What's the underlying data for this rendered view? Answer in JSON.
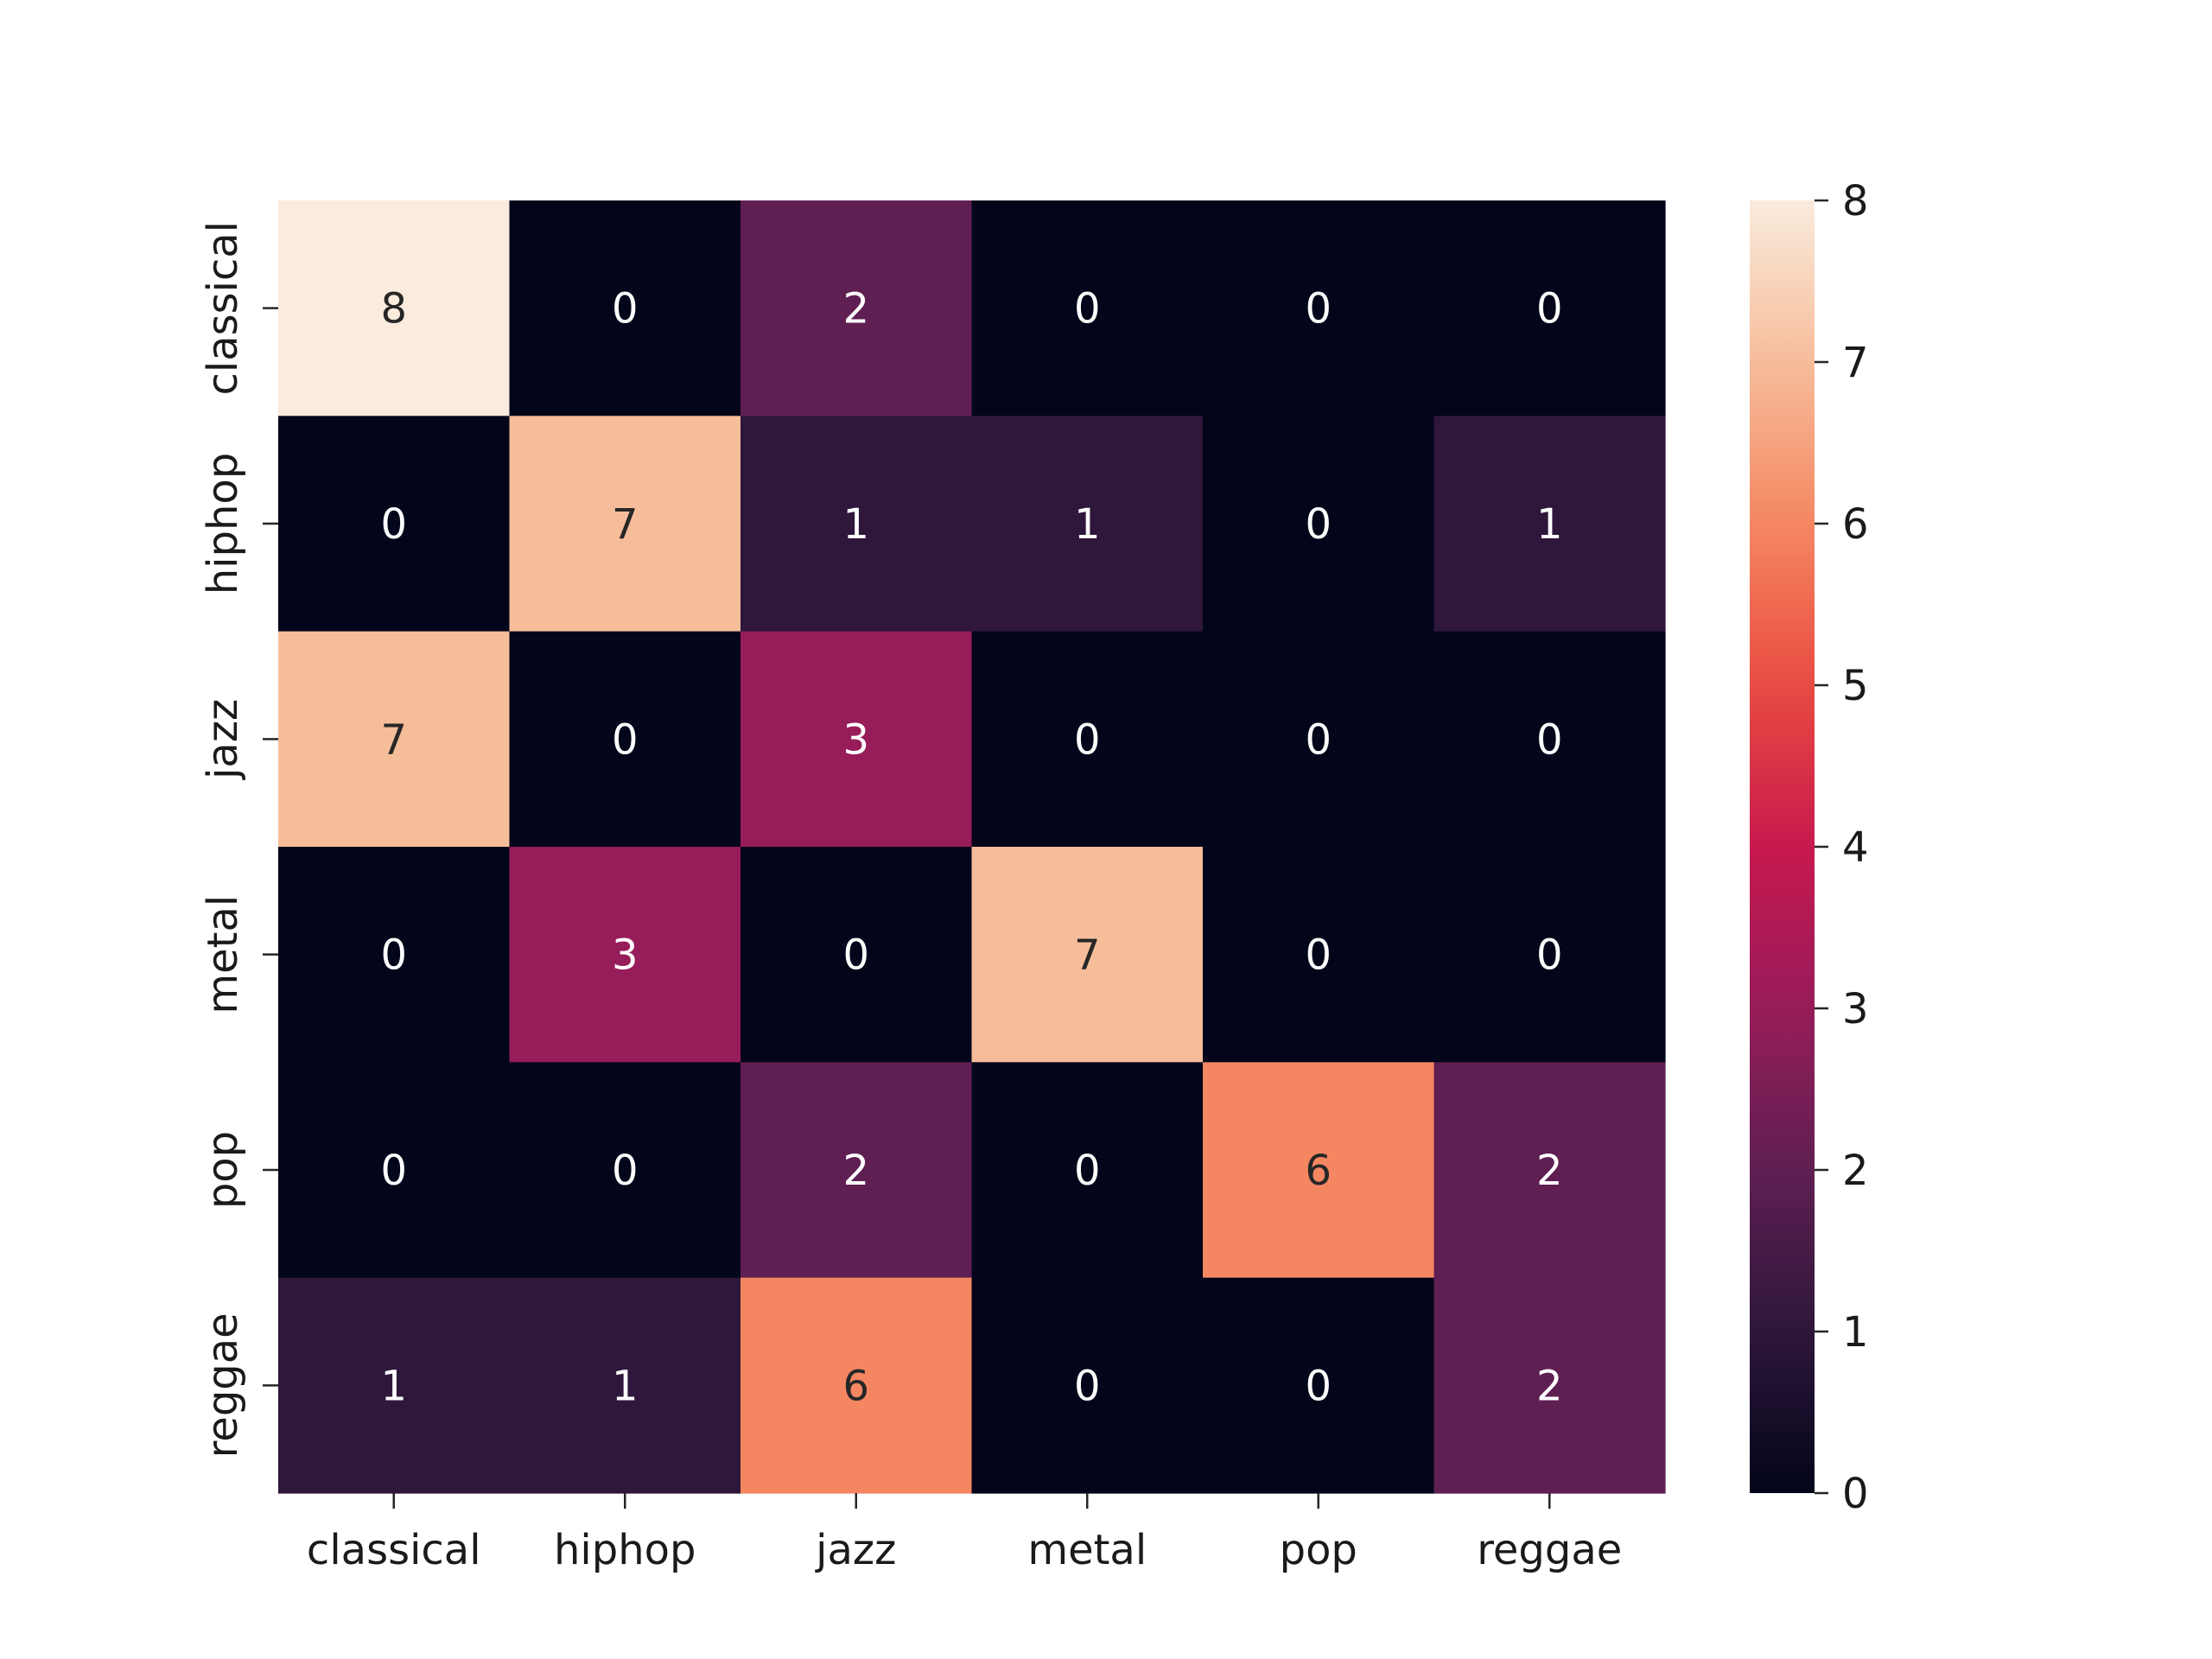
{
  "chart_data": {
    "type": "heatmap",
    "title": "",
    "xlabel": "",
    "ylabel": "",
    "x_categories": [
      "classical",
      "hiphop",
      "jazz",
      "metal",
      "pop",
      "reggae"
    ],
    "y_categories": [
      "classical",
      "hiphop",
      "jazz",
      "metal",
      "pop",
      "reggae"
    ],
    "values": [
      [
        8,
        0,
        2,
        0,
        0,
        0
      ],
      [
        0,
        7,
        1,
        1,
        0,
        1
      ],
      [
        7,
        0,
        3,
        0,
        0,
        0
      ],
      [
        0,
        3,
        0,
        7,
        0,
        0
      ],
      [
        0,
        0,
        2,
        0,
        6,
        2
      ],
      [
        1,
        1,
        6,
        0,
        0,
        2
      ]
    ],
    "annotations": true,
    "colorbar": {
      "range": [
        0,
        8
      ],
      "ticks": [
        "0",
        "1",
        "2",
        "3",
        "4",
        "5",
        "6",
        "7",
        "8"
      ]
    },
    "colormap": "rocket",
    "grid": false
  }
}
